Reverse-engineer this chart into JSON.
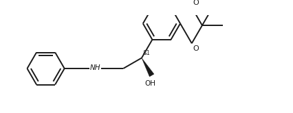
{
  "bg_color": "#ffffff",
  "line_color": "#1a1a1a",
  "line_width": 1.4,
  "figsize": [
    4.27,
    1.65
  ],
  "dpi": 100,
  "xlim": [
    -5.8,
    5.5
  ],
  "ylim": [
    -1.6,
    1.8
  ]
}
